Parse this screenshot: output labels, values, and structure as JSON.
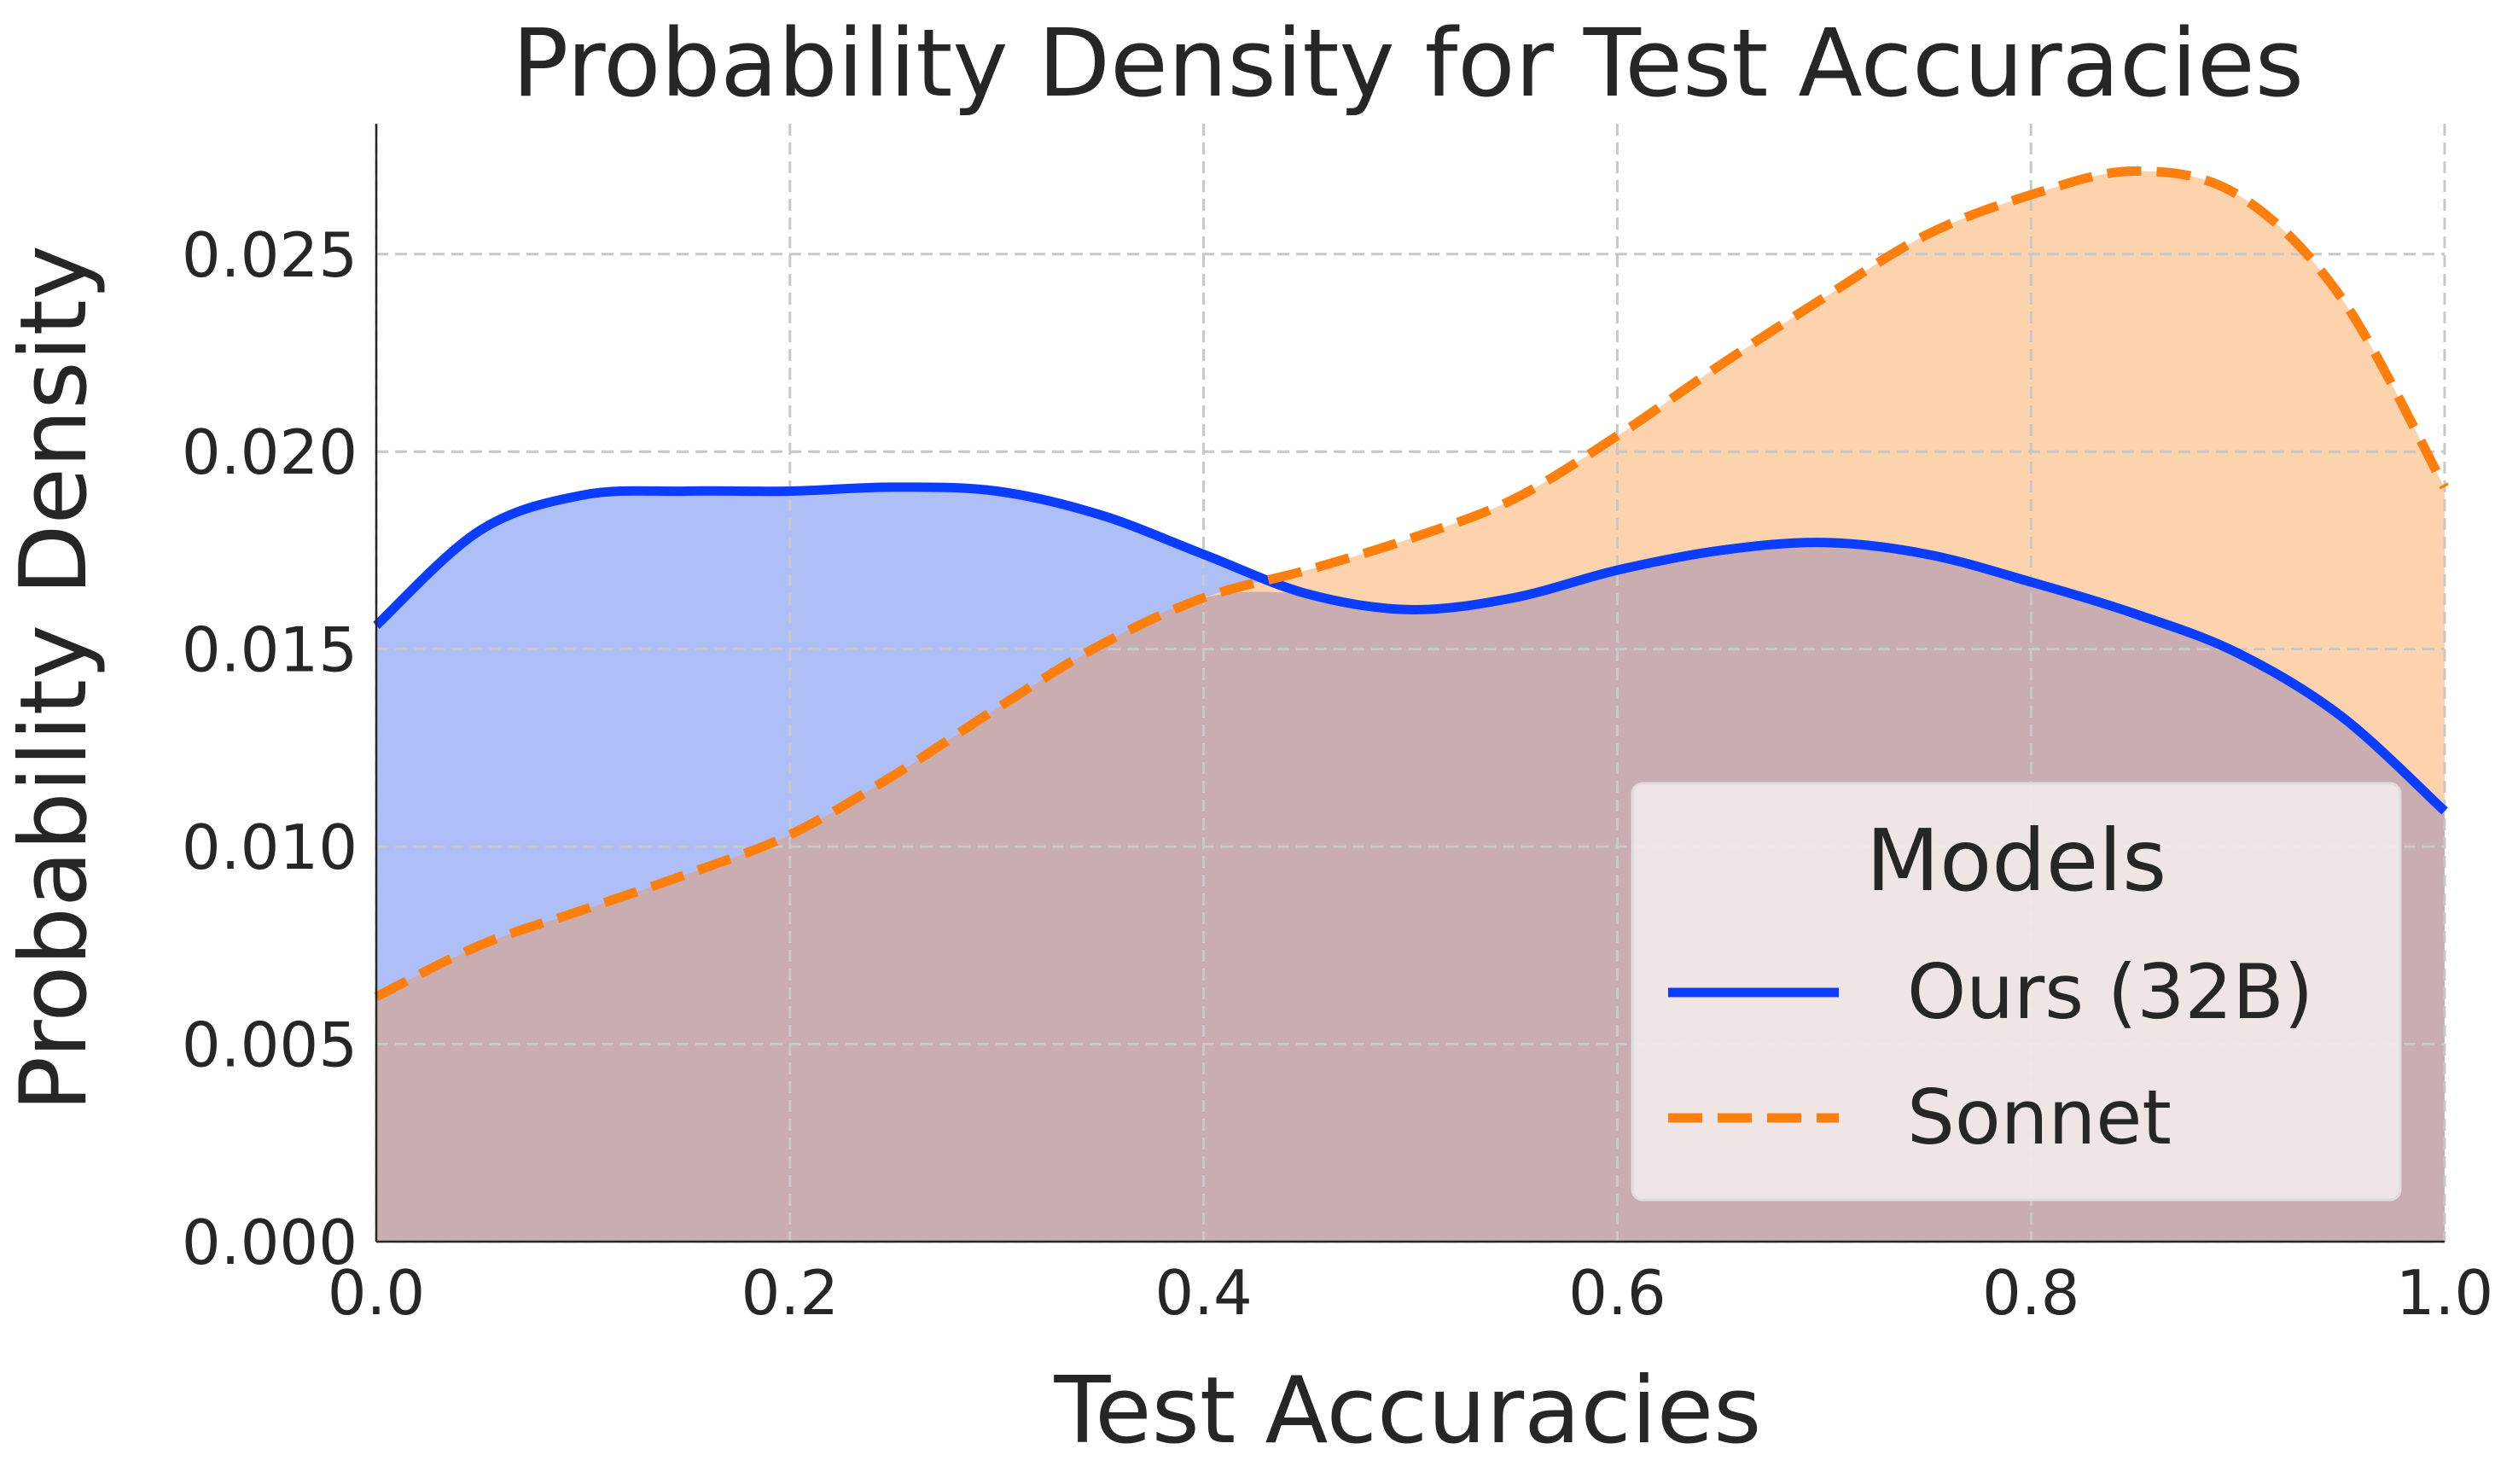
{
  "chart_data": {
    "type": "area",
    "title": "Probability Density for Test Accuracies",
    "xlabel": "Test Accuracies",
    "ylabel": "Probability Density",
    "xlim": [
      0.0,
      1.0
    ],
    "ylim": [
      0.0,
      0.0283
    ],
    "xticks": [
      "0.0",
      "0.2",
      "0.4",
      "0.6",
      "0.8",
      "1.0"
    ],
    "yticks": [
      "0.000",
      "0.005",
      "0.010",
      "0.015",
      "0.020",
      "0.025"
    ],
    "grid": true,
    "legend": {
      "title": "Models",
      "placement": "lower-right",
      "entries": [
        "Ours (32B)",
        "Sonnet"
      ]
    },
    "x": [
      0.0,
      0.05,
      0.1,
      0.15,
      0.2,
      0.25,
      0.3,
      0.35,
      0.4,
      0.45,
      0.5,
      0.55,
      0.6,
      0.65,
      0.7,
      0.75,
      0.8,
      0.85,
      0.9,
      0.95,
      1.0
    ],
    "series": [
      {
        "name": "Ours (32B)",
        "color": "#0a3dff",
        "fill": "#aebff8",
        "line": "solid",
        "values": [
          0.0156,
          0.018,
          0.0189,
          0.019,
          0.019,
          0.0191,
          0.019,
          0.0184,
          0.0174,
          0.0164,
          0.016,
          0.0163,
          0.017,
          0.0175,
          0.0177,
          0.0174,
          0.0167,
          0.0159,
          0.0149,
          0.0133,
          0.0109
        ]
      },
      {
        "name": "Sonnet",
        "color": "#ff7f0e",
        "fill": "#fcd3ad",
        "line": "dashed",
        "values": [
          0.0062,
          0.0075,
          0.0084,
          0.0093,
          0.0103,
          0.0118,
          0.0135,
          0.0151,
          0.0163,
          0.017,
          0.0178,
          0.0188,
          0.0204,
          0.0222,
          0.0239,
          0.0255,
          0.0265,
          0.0271,
          0.0265,
          0.0239,
          0.0191
        ]
      }
    ],
    "overlap_fill": "#c9adb1"
  }
}
